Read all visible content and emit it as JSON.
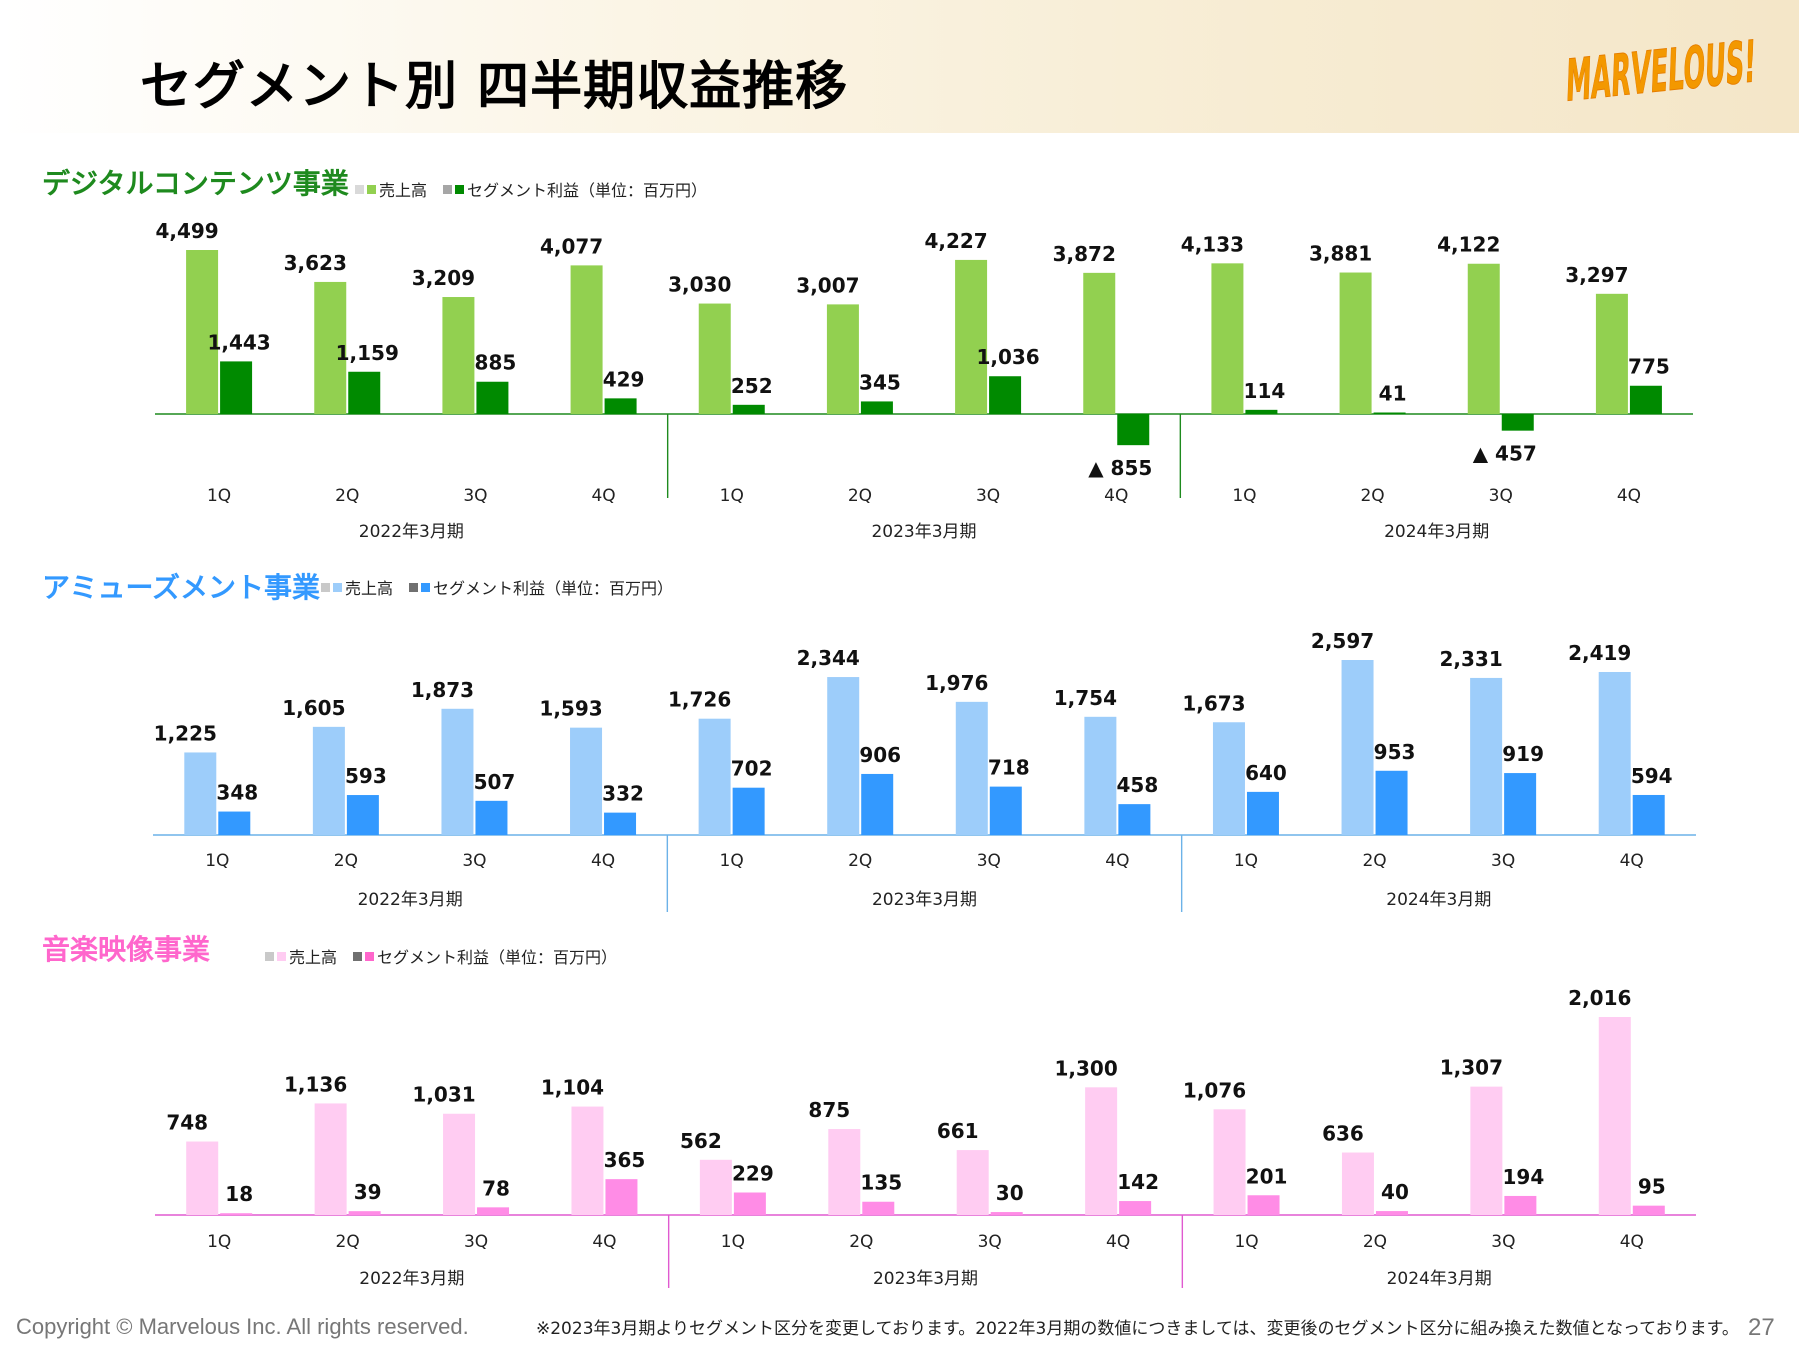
{
  "page": {
    "title": "セグメント別 四半期収益推移",
    "logo_text": "MARVELOUS!",
    "copyright": "Copyright © Marvelous Inc. All rights reserved.",
    "footnote": "※2023年3月期よりセグメント区分を変更しております。2022年3月期の数値につきましては、変更後のセグメント区分に組み換えた数値となっております。",
    "page_number": "27"
  },
  "chart_data": [
    {
      "type": "bar",
      "title": "デジタルコンテンツ事業",
      "title_color": "#1e8a1e",
      "legend": {
        "sales": "売上高",
        "profit": "セグメント利益（単位：百万円）"
      },
      "categories": [
        "1Q",
        "2Q",
        "3Q",
        "4Q",
        "1Q",
        "2Q",
        "3Q",
        "4Q",
        "1Q",
        "2Q",
        "3Q",
        "4Q"
      ],
      "groups": [
        "2022年3月期",
        "2023年3月期",
        "2024年3月期"
      ],
      "series": [
        {
          "name": "売上高",
          "color": "#92d050",
          "values": [
            4499,
            3623,
            3209,
            4077,
            3030,
            3007,
            4227,
            3872,
            4133,
            3881,
            4122,
            3297
          ]
        },
        {
          "name": "セグメント利益",
          "color": "#008a00",
          "values": [
            1443,
            1159,
            885,
            429,
            252,
            345,
            1036,
            -855,
            114,
            41,
            -457,
            775
          ]
        }
      ],
      "axis_color": "#1e8a1e",
      "negative_prefix": "▲ "
    },
    {
      "type": "bar",
      "title": "アミューズメント事業",
      "title_color": "#3399ff",
      "legend": {
        "sales": "売上高",
        "profit": "セグメント利益（単位：百万円）"
      },
      "categories": [
        "1Q",
        "2Q",
        "3Q",
        "4Q",
        "1Q",
        "2Q",
        "3Q",
        "4Q",
        "1Q",
        "2Q",
        "3Q",
        "4Q"
      ],
      "groups": [
        "2022年3月期",
        "2023年3月期",
        "2024年3月期"
      ],
      "series": [
        {
          "name": "売上高",
          "color": "#9dcdfa",
          "values": [
            1225,
            1605,
            1873,
            1593,
            1726,
            2344,
            1976,
            1754,
            1673,
            2597,
            2331,
            2419
          ]
        },
        {
          "name": "セグメント利益",
          "color": "#3399ff",
          "values": [
            348,
            593,
            507,
            332,
            702,
            906,
            718,
            458,
            640,
            953,
            919,
            594
          ]
        }
      ],
      "axis_color": "#6cb2e8"
    },
    {
      "type": "bar",
      "title": "音楽映像事業",
      "title_color": "#ff66cc",
      "legend": {
        "sales": "売上高",
        "profit": "セグメント利益（単位：百万円）"
      },
      "categories": [
        "1Q",
        "2Q",
        "3Q",
        "4Q",
        "1Q",
        "2Q",
        "3Q",
        "4Q",
        "1Q",
        "2Q",
        "3Q",
        "4Q"
      ],
      "groups": [
        "2022年3月期",
        "2023年3月期",
        "2024年3月期"
      ],
      "series": [
        {
          "name": "売上高",
          "color": "#ffccf2",
          "values": [
            748,
            1136,
            1031,
            1104,
            562,
            875,
            661,
            1300,
            1076,
            636,
            1307,
            2016
          ]
        },
        {
          "name": "セグメント利益",
          "color": "#ff8ce6",
          "values": [
            18,
            39,
            78,
            365,
            229,
            135,
            30,
            142,
            201,
            40,
            194,
            95
          ]
        }
      ],
      "axis_color": "#e05ad0"
    }
  ]
}
